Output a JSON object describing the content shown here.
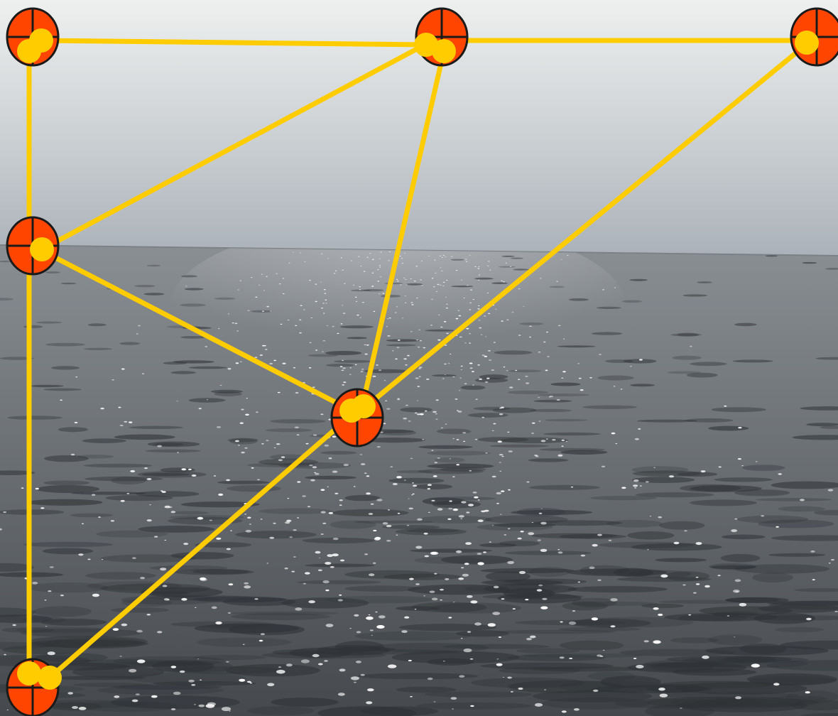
{
  "scene": {
    "description_visible_text": "",
    "sky_top_color": "#eef0ef",
    "sky_mid_color": "#c7ccd0",
    "horizon_color": "#aab1b8",
    "sea_far_color": "#8a8f94",
    "sea_near_color": "#45494d",
    "glitter_color": "#ffffff"
  },
  "network": {
    "edge_color": "#ffcc00",
    "joint_color": "#ffcc00",
    "marker_fill": "#ff4500",
    "marker_stroke": "#1a1a1a",
    "marker_icon": "crosshair-target-icon",
    "node_count": 6,
    "edge_count": 9
  }
}
